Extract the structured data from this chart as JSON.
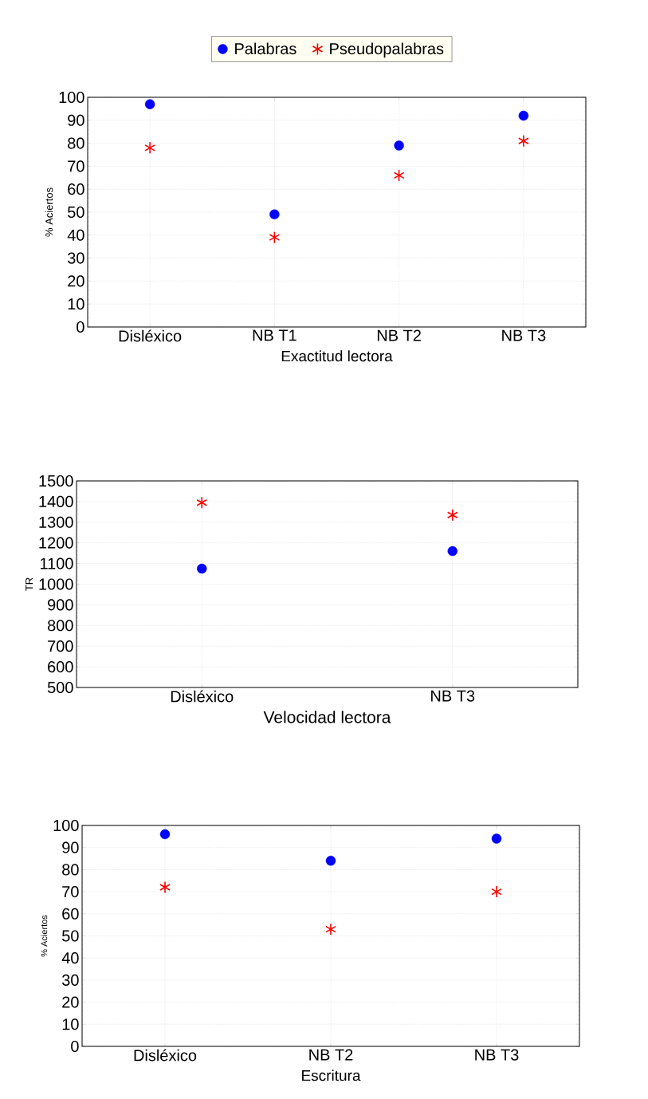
{
  "chart_data": [
    {
      "type": "scatter",
      "xlabel": "Exactitud lectora",
      "ylabel": "% Aciertos",
      "categories": [
        "Disléxico",
        "NB T1",
        "NB T2",
        "NB T3"
      ],
      "ylim": [
        0,
        100
      ],
      "yticks": [
        0,
        10,
        20,
        30,
        40,
        50,
        60,
        70,
        80,
        90,
        100
      ],
      "grid": true,
      "legend": "top",
      "series": [
        {
          "name": "Palabras",
          "color": "#0000ff",
          "marker": "circle",
          "values": [
            97,
            49,
            79,
            92
          ]
        },
        {
          "name": "Pseudopalabras",
          "color": "#ff0000",
          "marker": "cross",
          "values": [
            78,
            39,
            66,
            81
          ]
        }
      ]
    },
    {
      "type": "scatter",
      "xlabel": "Velocidad lectora",
      "ylabel": "TR",
      "categories": [
        "Disléxico",
        "NB T3"
      ],
      "ylim": [
        500,
        1500
      ],
      "yticks": [
        500,
        600,
        700,
        800,
        900,
        1000,
        1100,
        1200,
        1300,
        1400,
        1500
      ],
      "grid": true,
      "series": [
        {
          "color": "#0000ff",
          "marker": "circle",
          "values": [
            1075,
            1160
          ]
        },
        {
          "color": "#ff0000",
          "marker": "cross",
          "values": [
            1395,
            1335
          ]
        }
      ]
    },
    {
      "type": "scatter",
      "xlabel": "Escritura",
      "ylabel": "% Aciertos",
      "categories": [
        "Disléxico",
        "NB T2",
        "NB T3"
      ],
      "ylim": [
        0,
        100
      ],
      "yticks": [
        0,
        10,
        20,
        30,
        40,
        50,
        60,
        70,
        80,
        90,
        100
      ],
      "grid": true,
      "series": [
        {
          "color": "#0000ff",
          "marker": "circle",
          "values": [
            96,
            84,
            94
          ]
        },
        {
          "color": "#ff0000",
          "marker": "cross",
          "values": [
            72,
            53,
            70
          ]
        }
      ]
    }
  ]
}
